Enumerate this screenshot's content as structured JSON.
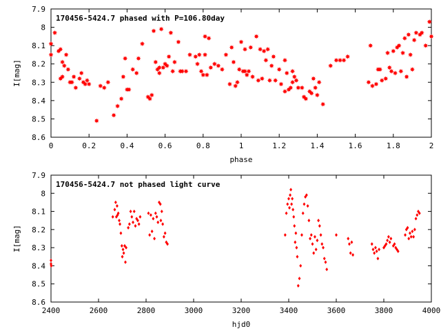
{
  "chart_data": [
    {
      "type": "scatter",
      "title": "170456-5424.7 phased with P=106.80day",
      "xlabel": "phase",
      "ylabel": "I[mag]",
      "xlim": [
        0,
        2
      ],
      "ylim": [
        8.6,
        7.9
      ],
      "y_inverted": true,
      "grid": false,
      "marker_color": "#ff0000",
      "marker": "star",
      "x_ticks": [
        {
          "value": 0,
          "label": "0"
        },
        {
          "value": 0.2,
          "label": "0.2"
        },
        {
          "value": 0.4,
          "label": "0.4"
        },
        {
          "value": 0.6,
          "label": "0.6"
        },
        {
          "value": 0.8,
          "label": "0.8"
        },
        {
          "value": 1.0,
          "label": "1"
        },
        {
          "value": 1.2,
          "label": "1.2"
        },
        {
          "value": 1.4,
          "label": "1.4"
        },
        {
          "value": 1.6,
          "label": "1.6"
        },
        {
          "value": 1.8,
          "label": "1.8"
        },
        {
          "value": 2.0,
          "label": "2"
        }
      ],
      "y_ticks": [
        {
          "value": 7.9,
          "label": "7.9"
        },
        {
          "value": 8.0,
          "label": "8"
        },
        {
          "value": 8.1,
          "label": "8.1"
        },
        {
          "value": 8.2,
          "label": "8.2"
        },
        {
          "value": 8.3,
          "label": "8.3"
        },
        {
          "value": 8.4,
          "label": "8.4"
        },
        {
          "value": 8.5,
          "label": "8.5"
        },
        {
          "value": 8.6,
          "label": "8.6"
        }
      ],
      "points": [
        [
          0.0,
          8.09
        ],
        [
          0.0,
          8.15
        ],
        [
          0.02,
          8.03
        ],
        [
          0.04,
          8.13
        ],
        [
          0.05,
          8.12
        ],
        [
          0.05,
          8.28
        ],
        [
          0.06,
          8.19
        ],
        [
          0.06,
          8.27
        ],
        [
          0.07,
          8.21
        ],
        [
          0.08,
          8.15
        ],
        [
          0.09,
          8.23
        ],
        [
          0.1,
          8.3
        ],
        [
          0.11,
          8.3
        ],
        [
          0.12,
          8.27
        ],
        [
          0.13,
          8.33
        ],
        [
          0.15,
          8.28
        ],
        [
          0.16,
          8.25
        ],
        [
          0.17,
          8.3
        ],
        [
          0.18,
          8.31
        ],
        [
          0.19,
          8.29
        ],
        [
          0.2,
          8.31
        ],
        [
          0.24,
          8.51
        ],
        [
          0.26,
          8.32
        ],
        [
          0.28,
          8.33
        ],
        [
          0.3,
          8.3
        ],
        [
          0.33,
          8.48
        ],
        [
          0.35,
          8.43
        ],
        [
          0.37,
          8.39
        ],
        [
          0.38,
          8.27
        ],
        [
          0.39,
          8.17
        ],
        [
          0.4,
          8.34
        ],
        [
          0.41,
          8.34
        ],
        [
          0.43,
          8.23
        ],
        [
          0.45,
          8.25
        ],
        [
          0.46,
          8.17
        ],
        [
          0.48,
          8.09
        ],
        [
          0.51,
          8.38
        ],
        [
          0.52,
          8.39
        ],
        [
          0.53,
          8.37
        ],
        [
          0.54,
          8.02
        ],
        [
          0.55,
          8.19
        ],
        [
          0.56,
          8.23
        ],
        [
          0.57,
          8.22
        ],
        [
          0.57,
          8.25
        ],
        [
          0.58,
          8.01
        ],
        [
          0.59,
          8.22
        ],
        [
          0.6,
          8.2
        ],
        [
          0.61,
          8.21
        ],
        [
          0.62,
          8.16
        ],
        [
          0.63,
          8.03
        ],
        [
          0.64,
          8.24
        ],
        [
          0.65,
          8.19
        ],
        [
          0.67,
          8.08
        ],
        [
          0.68,
          8.24
        ],
        [
          0.69,
          8.24
        ],
        [
          0.71,
          8.24
        ],
        [
          0.73,
          8.15
        ],
        [
          0.76,
          8.16
        ],
        [
          0.77,
          8.2
        ],
        [
          0.78,
          8.15
        ],
        [
          0.79,
          8.24
        ],
        [
          0.8,
          8.26
        ],
        [
          0.81,
          8.15
        ],
        [
          0.81,
          8.05
        ],
        [
          0.82,
          8.26
        ],
        [
          0.83,
          8.06
        ],
        [
          0.84,
          8.22
        ],
        [
          0.86,
          8.2
        ],
        [
          0.88,
          8.21
        ],
        [
          0.9,
          8.23
        ],
        [
          0.92,
          8.15
        ],
        [
          0.94,
          8.31
        ],
        [
          0.95,
          8.11
        ],
        [
          0.96,
          8.19
        ],
        [
          0.97,
          8.32
        ],
        [
          0.98,
          8.3
        ],
        [
          0.99,
          8.23
        ],
        [
          1.0,
          8.08
        ],
        [
          1.01,
          8.24
        ],
        [
          1.02,
          8.24
        ],
        [
          1.02,
          8.12
        ],
        [
          1.03,
          8.26
        ],
        [
          1.04,
          8.24
        ],
        [
          1.05,
          8.11
        ],
        [
          1.06,
          8.27
        ],
        [
          1.08,
          8.05
        ],
        [
          1.09,
          8.29
        ],
        [
          1.1,
          8.12
        ],
        [
          1.11,
          8.28
        ],
        [
          1.12,
          8.13
        ],
        [
          1.13,
          8.18
        ],
        [
          1.14,
          8.12
        ],
        [
          1.15,
          8.29
        ],
        [
          1.16,
          8.21
        ],
        [
          1.17,
          8.16
        ],
        [
          1.18,
          8.29
        ],
        [
          1.2,
          8.23
        ],
        [
          1.21,
          8.31
        ],
        [
          1.23,
          8.18
        ],
        [
          1.23,
          8.35
        ],
        [
          1.24,
          8.25
        ],
        [
          1.25,
          8.34
        ],
        [
          1.26,
          8.33
        ],
        [
          1.27,
          8.24
        ],
        [
          1.27,
          8.3
        ],
        [
          1.28,
          8.27
        ],
        [
          1.29,
          8.29
        ],
        [
          1.3,
          8.33
        ],
        [
          1.32,
          8.33
        ],
        [
          1.33,
          8.38
        ],
        [
          1.34,
          8.39
        ],
        [
          1.36,
          8.35
        ],
        [
          1.37,
          8.36
        ],
        [
          1.38,
          8.28
        ],
        [
          1.39,
          8.33
        ],
        [
          1.4,
          8.37
        ],
        [
          1.41,
          8.3
        ],
        [
          1.43,
          8.42
        ],
        [
          1.47,
          8.21
        ],
        [
          1.5,
          8.18
        ],
        [
          1.52,
          8.18
        ],
        [
          1.54,
          8.18
        ],
        [
          1.56,
          8.16
        ],
        [
          1.67,
          8.3
        ],
        [
          1.68,
          8.1
        ],
        [
          1.69,
          8.32
        ],
        [
          1.71,
          8.31
        ],
        [
          1.72,
          8.23
        ],
        [
          1.73,
          8.23
        ],
        [
          1.74,
          8.29
        ],
        [
          1.76,
          8.28
        ],
        [
          1.77,
          8.14
        ],
        [
          1.78,
          8.22
        ],
        [
          1.79,
          8.24
        ],
        [
          1.8,
          8.13
        ],
        [
          1.81,
          8.25
        ],
        [
          1.82,
          8.11
        ],
        [
          1.83,
          8.1
        ],
        [
          1.84,
          8.24
        ],
        [
          1.85,
          8.14
        ],
        [
          1.86,
          8.06
        ],
        [
          1.87,
          8.27
        ],
        [
          1.88,
          8.04
        ],
        [
          1.89,
          8.15
        ],
        [
          1.9,
          8.23
        ],
        [
          1.91,
          8.07
        ],
        [
          1.92,
          8.03
        ],
        [
          1.94,
          8.04
        ],
        [
          1.95,
          8.03
        ],
        [
          1.97,
          8.1
        ],
        [
          1.99,
          7.97
        ],
        [
          2.0,
          8.05
        ]
      ]
    },
    {
      "type": "scatter",
      "title": "170456-5424.7 not phased light curve",
      "xlabel": "hjd0",
      "ylabel": "I[mag]",
      "xlim": [
        2400,
        4000
      ],
      "ylim": [
        8.6,
        7.9
      ],
      "y_inverted": true,
      "grid": false,
      "marker_color": "#ff0000",
      "marker": "diamond",
      "x_ticks": [
        {
          "value": 2400,
          "label": "2400"
        },
        {
          "value": 2600,
          "label": "2600"
        },
        {
          "value": 2800,
          "label": "2800"
        },
        {
          "value": 3000,
          "label": "3000"
        },
        {
          "value": 3200,
          "label": "3200"
        },
        {
          "value": 3400,
          "label": "3400"
        },
        {
          "value": 3600,
          "label": "3600"
        },
        {
          "value": 3800,
          "label": "3800"
        },
        {
          "value": 4000,
          "label": "4000"
        }
      ],
      "y_ticks": [
        {
          "value": 7.9,
          "label": "7.9"
        },
        {
          "value": 8.0,
          "label": "8"
        },
        {
          "value": 8.1,
          "label": "8.1"
        },
        {
          "value": 8.2,
          "label": "8.2"
        },
        {
          "value": 8.3,
          "label": "8.3"
        },
        {
          "value": 8.4,
          "label": "8.4"
        },
        {
          "value": 8.5,
          "label": "8.5"
        },
        {
          "value": 8.6,
          "label": "8.6"
        }
      ],
      "points": [
        [
          2400,
          8.37
        ],
        [
          2400,
          8.39
        ],
        [
          2401,
          8.4
        ],
        [
          2660,
          8.13
        ],
        [
          2668,
          8.09
        ],
        [
          2672,
          8.05
        ],
        [
          2675,
          8.13
        ],
        [
          2678,
          8.07
        ],
        [
          2680,
          8.12
        ],
        [
          2683,
          8.11
        ],
        [
          2687,
          8.15
        ],
        [
          2690,
          8.17
        ],
        [
          2694,
          8.22
        ],
        [
          2698,
          8.29
        ],
        [
          2700,
          8.35
        ],
        [
          2703,
          8.31
        ],
        [
          2706,
          8.33
        ],
        [
          2710,
          8.29
        ],
        [
          2713,
          8.38
        ],
        [
          2716,
          8.3
        ],
        [
          2725,
          8.19
        ],
        [
          2730,
          8.17
        ],
        [
          2735,
          8.1
        ],
        [
          2740,
          8.13
        ],
        [
          2745,
          8.16
        ],
        [
          2750,
          8.1
        ],
        [
          2755,
          8.18
        ],
        [
          2760,
          8.14
        ],
        [
          2765,
          8.15
        ],
        [
          2770,
          8.17
        ],
        [
          2775,
          8.13
        ],
        [
          2810,
          8.11
        ],
        [
          2815,
          8.23
        ],
        [
          2820,
          8.12
        ],
        [
          2825,
          8.21
        ],
        [
          2830,
          8.14
        ],
        [
          2835,
          8.25
        ],
        [
          2840,
          8.11
        ],
        [
          2845,
          8.13
        ],
        [
          2850,
          8.16
        ],
        [
          2855,
          8.05
        ],
        [
          2860,
          8.06
        ],
        [
          2862,
          8.15
        ],
        [
          2866,
          8.1
        ],
        [
          2870,
          8.17
        ],
        [
          2875,
          8.24
        ],
        [
          2880,
          8.22
        ],
        [
          2885,
          8.27
        ],
        [
          2890,
          8.28
        ],
        [
          3385,
          8.23
        ],
        [
          3390,
          8.11
        ],
        [
          3395,
          8.06
        ],
        [
          3400,
          8.03
        ],
        [
          3403,
          8.08
        ],
        [
          3406,
          8.01
        ],
        [
          3409,
          7.98
        ],
        [
          3412,
          8.06
        ],
        [
          3415,
          8.03
        ],
        [
          3418,
          8.09
        ],
        [
          3421,
          8.13
        ],
        [
          3424,
          8.18
        ],
        [
          3427,
          8.27
        ],
        [
          3430,
          8.22
        ],
        [
          3433,
          8.3
        ],
        [
          3436,
          8.35
        ],
        [
          3440,
          8.51
        ],
        [
          3445,
          8.47
        ],
        [
          3450,
          8.4
        ],
        [
          3455,
          8.23
        ],
        [
          3460,
          8.11
        ],
        [
          3465,
          8.06
        ],
        [
          3470,
          8.02
        ],
        [
          3475,
          8.01
        ],
        [
          3480,
          8.07
        ],
        [
          3485,
          8.15
        ],
        [
          3490,
          8.25
        ],
        [
          3495,
          8.23
        ],
        [
          3500,
          8.28
        ],
        [
          3505,
          8.33
        ],
        [
          3510,
          8.24
        ],
        [
          3515,
          8.31
        ],
        [
          3520,
          8.26
        ],
        [
          3525,
          8.15
        ],
        [
          3530,
          8.18
        ],
        [
          3535,
          8.23
        ],
        [
          3540,
          8.28
        ],
        [
          3545,
          8.3
        ],
        [
          3550,
          8.36
        ],
        [
          3555,
          8.38
        ],
        [
          3560,
          8.42
        ],
        [
          3600,
          8.23
        ],
        [
          3650,
          8.25
        ],
        [
          3655,
          8.28
        ],
        [
          3660,
          8.33
        ],
        [
          3665,
          8.27
        ],
        [
          3670,
          8.34
        ],
        [
          3750,
          8.28
        ],
        [
          3755,
          8.31
        ],
        [
          3760,
          8.33
        ],
        [
          3765,
          8.3
        ],
        [
          3770,
          8.32
        ],
        [
          3775,
          8.36
        ],
        [
          3780,
          8.31
        ],
        [
          3800,
          8.3
        ],
        [
          3805,
          8.29
        ],
        [
          3810,
          8.28
        ],
        [
          3815,
          8.26
        ],
        [
          3820,
          8.24
        ],
        [
          3825,
          8.27
        ],
        [
          3830,
          8.25
        ],
        [
          3840,
          8.29
        ],
        [
          3845,
          8.28
        ],
        [
          3850,
          8.3
        ],
        [
          3855,
          8.31
        ],
        [
          3860,
          8.32
        ],
        [
          3890,
          8.23
        ],
        [
          3895,
          8.2
        ],
        [
          3900,
          8.19
        ],
        [
          3905,
          8.25
        ],
        [
          3910,
          8.22
        ],
        [
          3915,
          8.24
        ],
        [
          3920,
          8.21
        ],
        [
          3925,
          8.24
        ],
        [
          3930,
          8.2
        ],
        [
          3935,
          8.14
        ],
        [
          3940,
          8.12
        ],
        [
          3945,
          8.1
        ],
        [
          3950,
          8.11
        ]
      ]
    }
  ]
}
